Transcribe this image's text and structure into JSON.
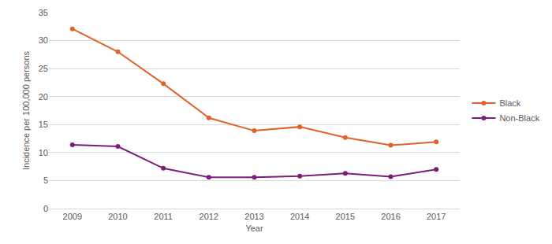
{
  "chart_data": {
    "type": "line",
    "x_label": "Year",
    "y_label": "Incidence per 100,000 persons",
    "categories": [
      "2009",
      "2010",
      "2011",
      "2012",
      "2013",
      "2014",
      "2015",
      "2016",
      "2017"
    ],
    "series": [
      {
        "name": "Black",
        "color": "#e0622a",
        "values": [
          32.1,
          28.0,
          22.3,
          16.2,
          13.9,
          14.6,
          12.7,
          11.3,
          11.9
        ]
      },
      {
        "name": "Non-Black",
        "color": "#7b1e7a",
        "values": [
          11.4,
          11.1,
          7.2,
          5.6,
          5.6,
          5.8,
          6.3,
          5.7,
          7.0
        ]
      }
    ],
    "ylim": [
      0,
      35
    ],
    "yticks": [
      0,
      5,
      10,
      15,
      20,
      25,
      30,
      35
    ],
    "grid": true,
    "legend": "right",
    "marker": "circle",
    "line_style": "solid"
  }
}
